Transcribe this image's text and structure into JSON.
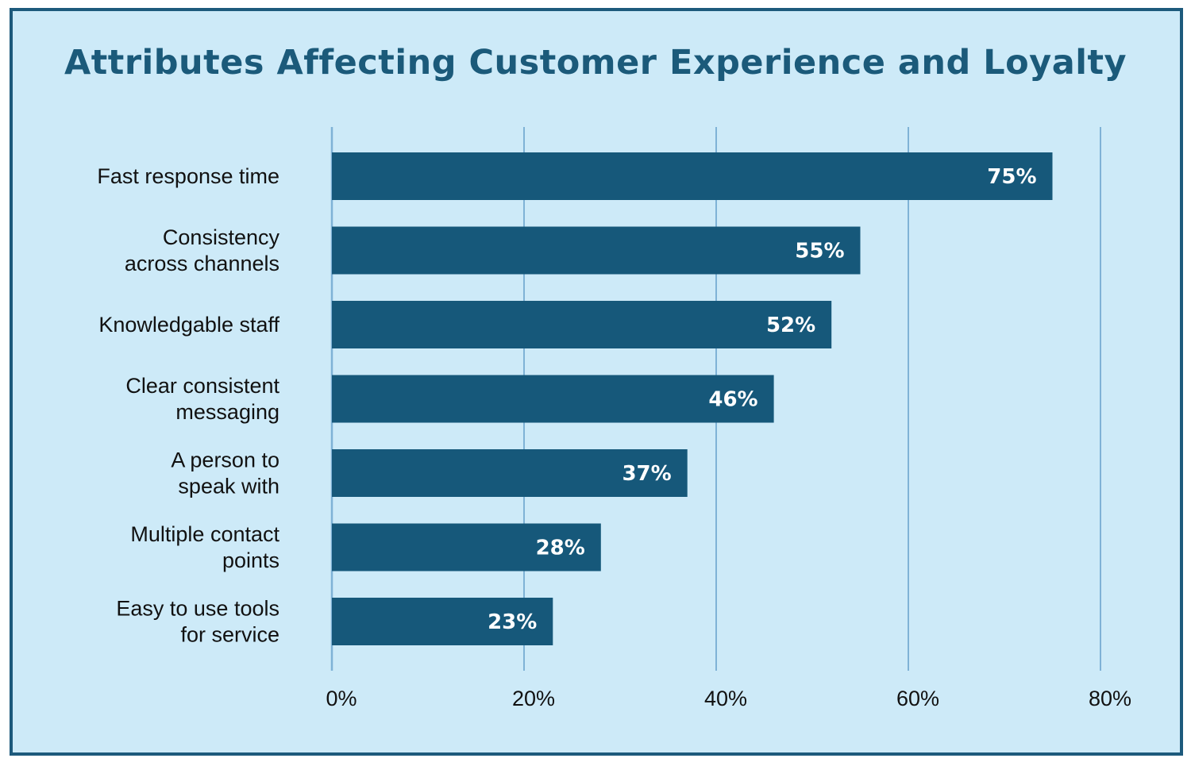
{
  "chart_data": {
    "type": "bar",
    "orientation": "horizontal",
    "title": "Attributes Affecting Customer Experience and Loyalty",
    "categories": [
      [
        "Fast response time"
      ],
      [
        "Consistency",
        "across channels"
      ],
      [
        "Knowledgable staff"
      ],
      [
        "Clear consistent",
        "messaging"
      ],
      [
        "A person to",
        "speak with"
      ],
      [
        "Multiple contact",
        "points"
      ],
      [
        "Easy to use tools",
        "for service"
      ]
    ],
    "values": [
      75,
      55,
      52,
      46,
      37,
      28,
      23
    ],
    "value_labels": [
      "75%",
      "55%",
      "52%",
      "46%",
      "37%",
      "28%",
      "23%"
    ],
    "xlim": [
      0,
      80
    ],
    "xticks": [
      0,
      20,
      40,
      60,
      80
    ],
    "xtick_labels": [
      "0%",
      "20%",
      "40%",
      "60%",
      "80%"
    ],
    "grid": true,
    "legend": "none",
    "colors": {
      "background": "#cdeaf8",
      "border": "#1d5a7c",
      "bar": "#16587a",
      "gridline": "#7fb2d6",
      "title": "#1b5a7a",
      "data_label": "#ffffff"
    }
  }
}
